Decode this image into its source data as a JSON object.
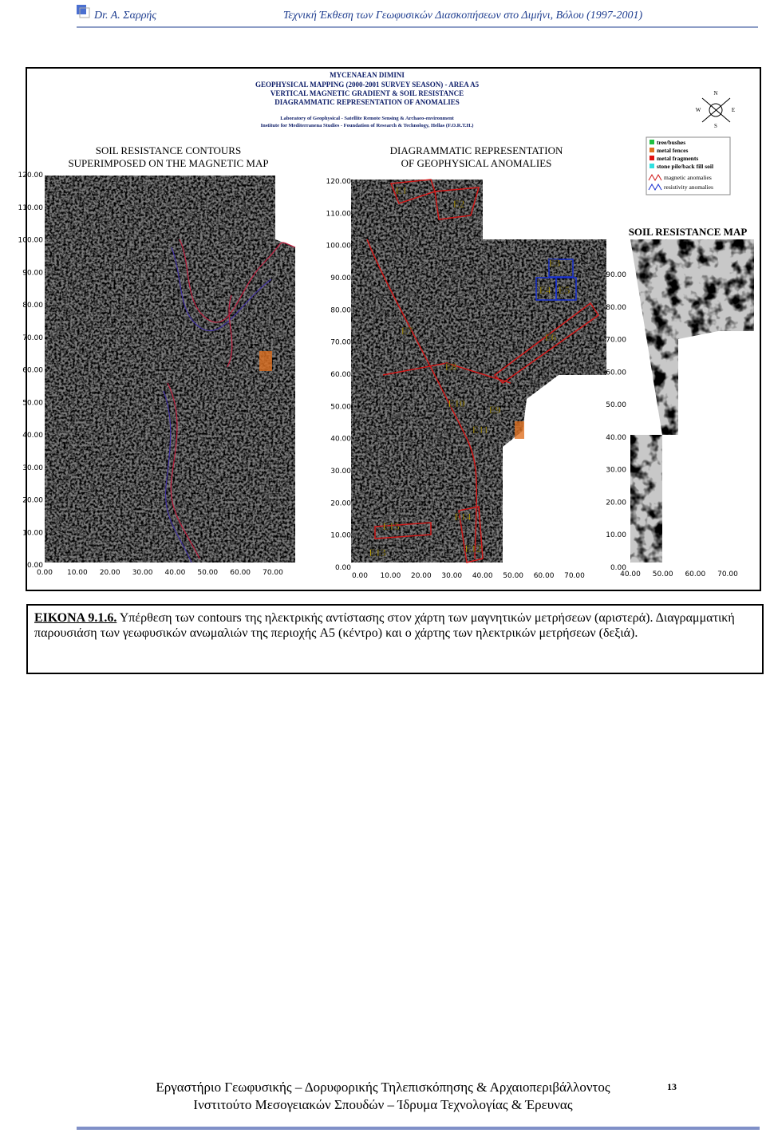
{
  "header": {
    "author": "Dr. A. Σαρρής",
    "title": "Τεχνική Έκθεση των Γεωφυσικών Διασκοπήσεων στο Διμήνι, Βόλου (1997-2001)"
  },
  "figure": {
    "heading": [
      "MYCENAEAN DIMINI",
      "GEOPHYSICAL MAPPING (2000-2001 SURVEY SEASON) - AREA A5",
      "VERTICAL MAGNETIC GRADIENT & SOIL RESISTANCE",
      "DIAGRAMMATIC REPRESENTATION OF ANOMALIES"
    ],
    "lab": [
      "Laboratory of Geophysical - Satellite Remote Sensing & Archaeo-environment",
      "Institute for Mediterranena Studies - Foundation of Research & Technology, Hellas (F.O.R.T.H.)"
    ],
    "compass": [
      "N",
      "E",
      "S",
      "W"
    ],
    "left_panel": {
      "title": [
        "SOIL RESISTANCE CONTOURS",
        "SUPERIMPOSED ON THE MAGNETIC MAP"
      ],
      "yticks": [
        "120.00",
        "110.00",
        "100.00",
        "90.00",
        "80.00",
        "70.00",
        "60.00",
        "50.00",
        "40.00",
        "30.00",
        "20.00",
        "10.00",
        "0.00"
      ],
      "xticks": [
        "0.00",
        "10.00",
        "20.00",
        "30.00",
        "40.00",
        "50.00",
        "60.00",
        "70.00"
      ]
    },
    "center_panel": {
      "title": [
        "DIAGRAMMATIC REPRESENTATION",
        "OF GEOPHYSICAL ANOMALIES"
      ],
      "yticks": [
        "120.00",
        "110.00",
        "100.00",
        "90.00",
        "80.00",
        "70.00",
        "60.00",
        "50.00",
        "40.00",
        "30.00",
        "20.00",
        "10.00",
        "0.00"
      ],
      "xticks": [
        "0.00",
        "10.00",
        "20.00",
        "30.00",
        "40.00",
        "50.00",
        "60.00",
        "70.00"
      ],
      "anomalies": [
        "E1",
        "E2",
        "E3",
        "E4",
        "E5",
        "E6",
        "E7",
        "E8",
        "E9",
        "E10",
        "E11",
        "E12",
        "E13",
        "E14",
        "E15"
      ]
    },
    "right_panel": {
      "title": "SOIL RESISTANCE MAP",
      "yticks": [
        "90.00",
        "80.00",
        "70.00",
        "60.00",
        "50.00",
        "40.00",
        "30.00",
        "20.00",
        "10.00",
        "0.00"
      ],
      "xticks": [
        "40.00",
        "50.00",
        "60.00",
        "70.00"
      ]
    },
    "legend": [
      "tree/bushes",
      "metal fences",
      "metal fragments",
      "stone pile/back fill soil",
      "magnetic anomalies",
      "resistivity anomalies"
    ]
  },
  "caption": {
    "label": "ΕΙΚΟΝΑ 9.1.6.",
    "text": "Υπέρθεση των contours της ηλεκτρικής αντίστασης στον χάρτη των μαγνητικών μετρήσεων (αριστερά). Διαγραμματική παρουσιάση των γεωφυσικών ανωμαλιών της περιοχής A5 (κέντρο) και ο χάρτης των ηλεκτρικών μετρήσεων (δεξιά)."
  },
  "footer": {
    "lines": [
      "Εργαστήριο Γεωφυσικής – Δορυφορικής Τηλεπισκόπησης & Αρχαιοπεριβάλλοντος",
      "Ινστιτούτο Μεσογειακών Σπουδών – Ίδρυμα Τεχνολογίας & Έρευνας"
    ],
    "page": "13"
  }
}
